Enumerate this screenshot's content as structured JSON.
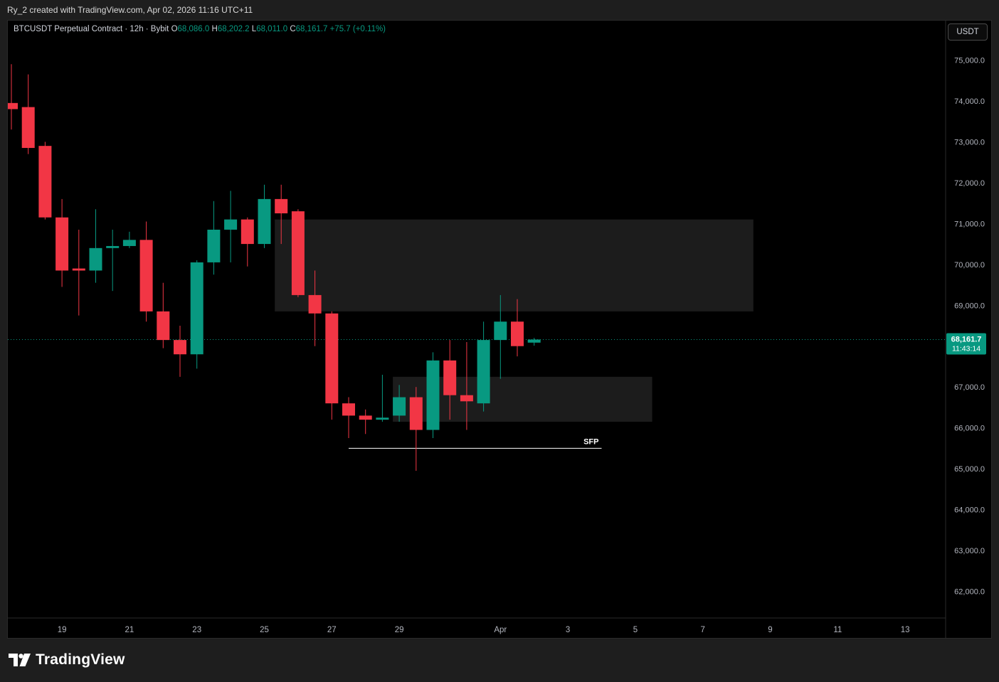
{
  "snapshot_caption": "Ry_2 created with TradingView.com, Apr 02, 2026 11:16 UTC+11",
  "legend": {
    "symbol": "BTCUSDT Perpetual Contract · 12h · Bybit",
    "open_label": "O",
    "open": "68,086.0",
    "high_label": "H",
    "high": "68,202.2",
    "low_label": "L",
    "low": "68,011.0",
    "close_label": "C",
    "close": "68,161.7",
    "change": "+75.7 (+0.11%)"
  },
  "currency_button": "USDT",
  "price_tag": {
    "price": "68,161.7",
    "countdown": "11:43:14"
  },
  "brand": "TradingView",
  "colors": {
    "up": "#089981",
    "down": "#f23645",
    "zone": "#1c1c1c",
    "tag": "#089981",
    "line": "#ffffff"
  },
  "chart_data": {
    "type": "candlestick",
    "timeframe": "12h",
    "y_axis": {
      "ylim": [
        61300,
        75800
      ],
      "ticks": [
        75000,
        74000,
        73000,
        72000,
        71000,
        70000,
        69000,
        67000,
        66000,
        65000,
        64000,
        63000,
        62000
      ],
      "tick_labels": [
        "75,000.0",
        "74,000.0",
        "73,000.0",
        "72,000.0",
        "71,000.0",
        "70,000.0",
        "69,000.0",
        "67,000.0",
        "66,000.0",
        "65,000.0",
        "64,000.0",
        "63,000.0",
        "62,000.0"
      ]
    },
    "x_axis": {
      "tick_labels": [
        {
          "label": "19",
          "bar": 3
        },
        {
          "label": "21",
          "bar": 7
        },
        {
          "label": "23",
          "bar": 11
        },
        {
          "label": "25",
          "bar": 15
        },
        {
          "label": "27",
          "bar": 19
        },
        {
          "label": "29",
          "bar": 23
        },
        {
          "label": "Apr",
          "bar": 29
        },
        {
          "label": "3",
          "bar": 33
        },
        {
          "label": "5",
          "bar": 37
        },
        {
          "label": "7",
          "bar": 41
        },
        {
          "label": "9",
          "bar": 45
        },
        {
          "label": "11",
          "bar": 49
        },
        {
          "label": "13",
          "bar": 53
        }
      ]
    },
    "candles": [
      {
        "o": 73950,
        "h": 74900,
        "l": 73300,
        "c": 73800
      },
      {
        "o": 73850,
        "h": 74650,
        "l": 72700,
        "c": 72850
      },
      {
        "o": 72900,
        "h": 73000,
        "l": 71100,
        "c": 71150
      },
      {
        "o": 71150,
        "h": 71600,
        "l": 69450,
        "c": 69850
      },
      {
        "o": 69900,
        "h": 70850,
        "l": 68750,
        "c": 69850
      },
      {
        "o": 69850,
        "h": 71350,
        "l": 69550,
        "c": 70400
      },
      {
        "o": 70400,
        "h": 70850,
        "l": 69350,
        "c": 70450
      },
      {
        "o": 70450,
        "h": 70800,
        "l": 70400,
        "c": 70600
      },
      {
        "o": 70600,
        "h": 71050,
        "l": 68600,
        "c": 68850
      },
      {
        "o": 68850,
        "h": 69550,
        "l": 67950,
        "c": 68150
      },
      {
        "o": 68150,
        "h": 68500,
        "l": 67250,
        "c": 67800
      },
      {
        "o": 67800,
        "h": 70100,
        "l": 67450,
        "c": 70050
      },
      {
        "o": 70050,
        "h": 71550,
        "l": 69750,
        "c": 70850
      },
      {
        "o": 70850,
        "h": 71800,
        "l": 70050,
        "c": 71100
      },
      {
        "o": 71100,
        "h": 71150,
        "l": 69950,
        "c": 70500
      },
      {
        "o": 70500,
        "h": 71950,
        "l": 70400,
        "c": 71600
      },
      {
        "o": 71600,
        "h": 71950,
        "l": 70500,
        "c": 71250
      },
      {
        "o": 71300,
        "h": 71350,
        "l": 69200,
        "c": 69250
      },
      {
        "o": 69250,
        "h": 69850,
        "l": 68000,
        "c": 68800
      },
      {
        "o": 68800,
        "h": 68850,
        "l": 66200,
        "c": 66600
      },
      {
        "o": 66600,
        "h": 66750,
        "l": 65750,
        "c": 66300
      },
      {
        "o": 66300,
        "h": 66450,
        "l": 65850,
        "c": 66200
      },
      {
        "o": 66200,
        "h": 67300,
        "l": 66150,
        "c": 66250
      },
      {
        "o": 66300,
        "h": 67050,
        "l": 66150,
        "c": 66750
      },
      {
        "o": 66750,
        "h": 67000,
        "l": 64950,
        "c": 65950
      },
      {
        "o": 65950,
        "h": 67850,
        "l": 65750,
        "c": 67650
      },
      {
        "o": 67650,
        "h": 68150,
        "l": 66200,
        "c": 66800
      },
      {
        "o": 66800,
        "h": 68100,
        "l": 65950,
        "c": 66650
      },
      {
        "o": 66600,
        "h": 68600,
        "l": 66400,
        "c": 68150
      },
      {
        "o": 68150,
        "h": 69250,
        "l": 67200,
        "c": 68600
      },
      {
        "o": 68600,
        "h": 69150,
        "l": 67750,
        "c": 68000
      },
      {
        "o": 68086,
        "h": 68202.2,
        "l": 68011,
        "c": 68161.7
      }
    ],
    "current_price": 68161.7,
    "zones": [
      {
        "from_bar": 16,
        "to_bar": 44,
        "top": 71100,
        "bottom": 68850
      },
      {
        "from_bar": 23,
        "to_bar": 38,
        "top": 67250,
        "bottom": 66150
      }
    ],
    "annotations": [
      {
        "type": "horizontal_line",
        "label": "SFP",
        "from_bar": 20,
        "to_bar": 35,
        "price": 65500
      }
    ]
  }
}
